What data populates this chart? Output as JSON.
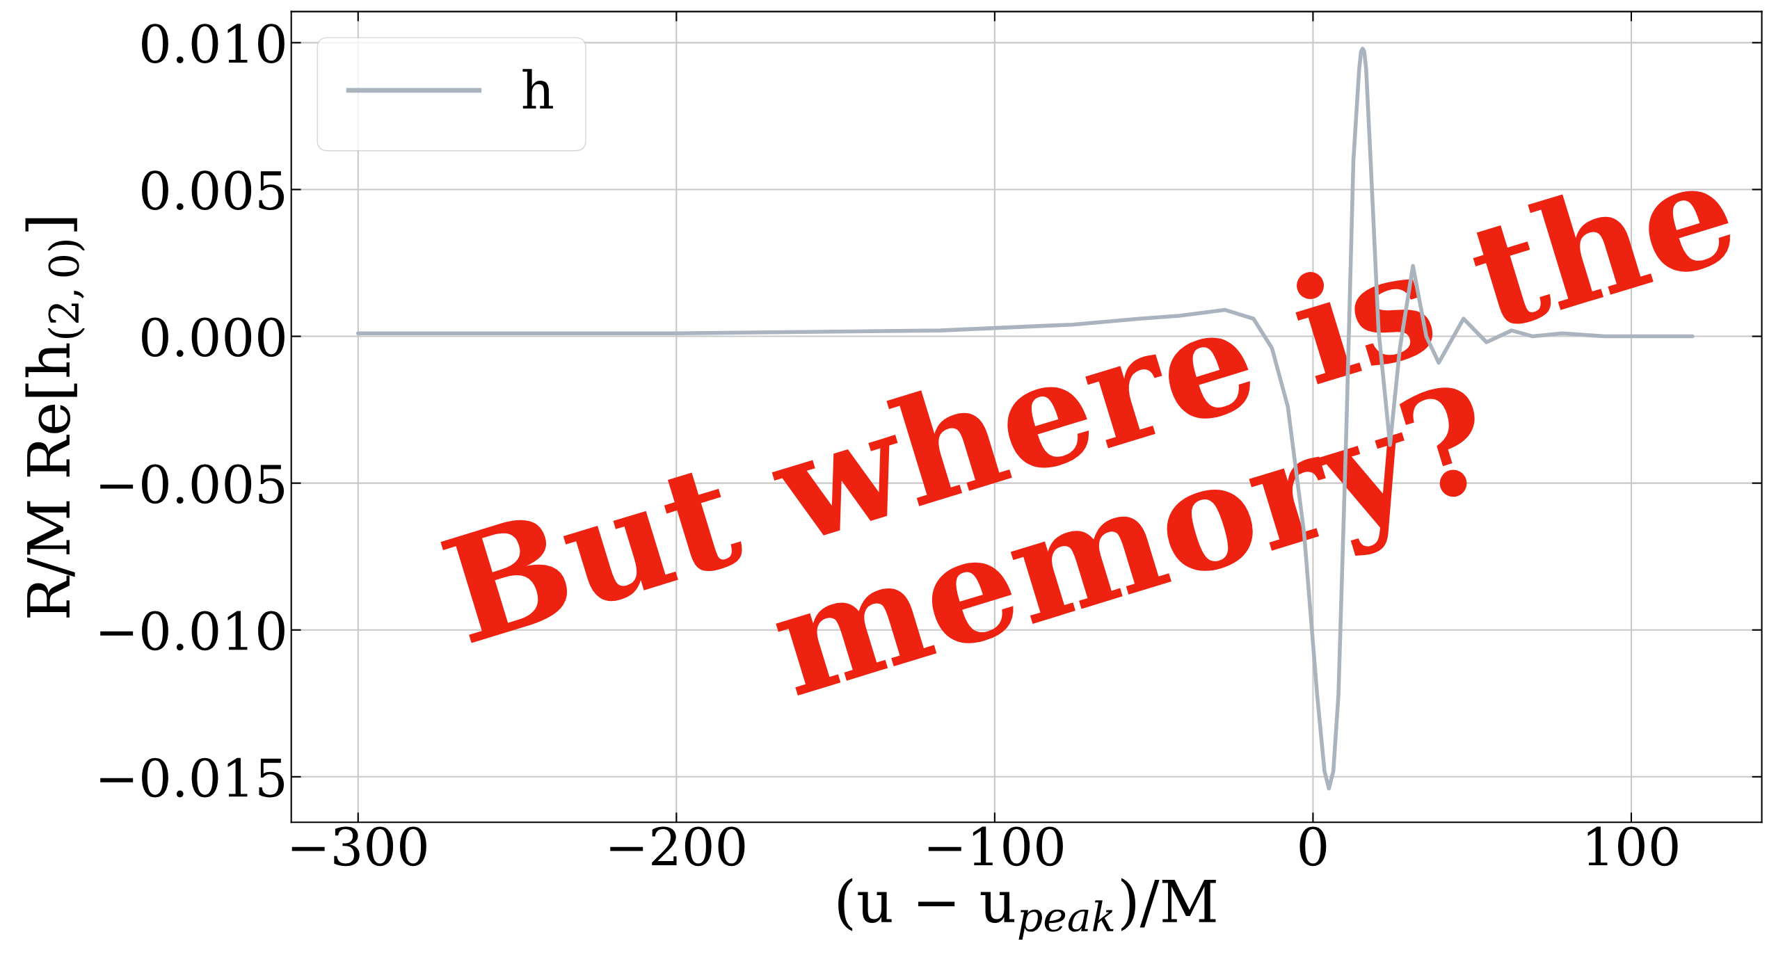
{
  "chart_data": {
    "type": "line",
    "xlabel": "(u − u$_{peak}$)/M",
    "ylabel": "R/M Re[h$_{(2,0)}$]",
    "series": [
      {
        "name": "h",
        "color": "#aab4be",
        "x": [
          -300,
          -200.6,
          -117,
          -75.5,
          -54.6,
          -42,
          -27.6,
          -18.7,
          -12.9,
          -7.9,
          -2.8,
          1.3,
          3.6,
          5.0,
          6.4,
          8.0,
          10.5,
          12.7,
          14.5,
          15.1,
          15.6,
          16.1,
          16.7,
          18.1,
          20.6,
          24.2,
          27.3,
          31.4,
          35.6,
          39.5,
          47.3,
          54.5,
          62.4,
          69.1,
          78.3,
          91.6,
          119.2
        ],
        "values": [
          0.0001,
          0.0001,
          0.0002,
          0.0004,
          0.0006,
          0.0007,
          0.0009,
          0.0006,
          -0.0004,
          -0.0024,
          -0.0067,
          -0.0122,
          -0.0148,
          -0.0154,
          -0.0148,
          -0.0122,
          -0.0031,
          0.006,
          0.0091,
          0.0097,
          0.0098,
          0.0097,
          0.0091,
          0.006,
          0.0002,
          -0.0037,
          -0.0004,
          0.0024,
          0.0,
          -0.0009,
          0.0006,
          -0.0002,
          0.0002,
          0.0,
          0.0001,
          0.0,
          0.0
        ]
      }
    ],
    "xlim": [
      -321,
      141
    ],
    "ylim": [
      -0.01655,
      0.01106
    ],
    "xticks": [
      {
        "value": -300,
        "label": "−300"
      },
      {
        "value": -200,
        "label": "−200"
      },
      {
        "value": -100,
        "label": "−100"
      },
      0,
      100
    ],
    "yticks": [
      {
        "value": -0.015,
        "label": "−0.015"
      },
      {
        "value": -0.01,
        "label": "−0.010"
      },
      {
        "value": -0.005,
        "label": "−0.005"
      },
      {
        "value": 0,
        "label": "0.000"
      },
      {
        "value": 0.005,
        "label": "0.005"
      },
      {
        "value": 0.01,
        "label": "0.010"
      }
    ],
    "grid": true,
    "legend": "top left",
    "annotations": [
      "But where is the\nmemory?"
    ]
  }
}
